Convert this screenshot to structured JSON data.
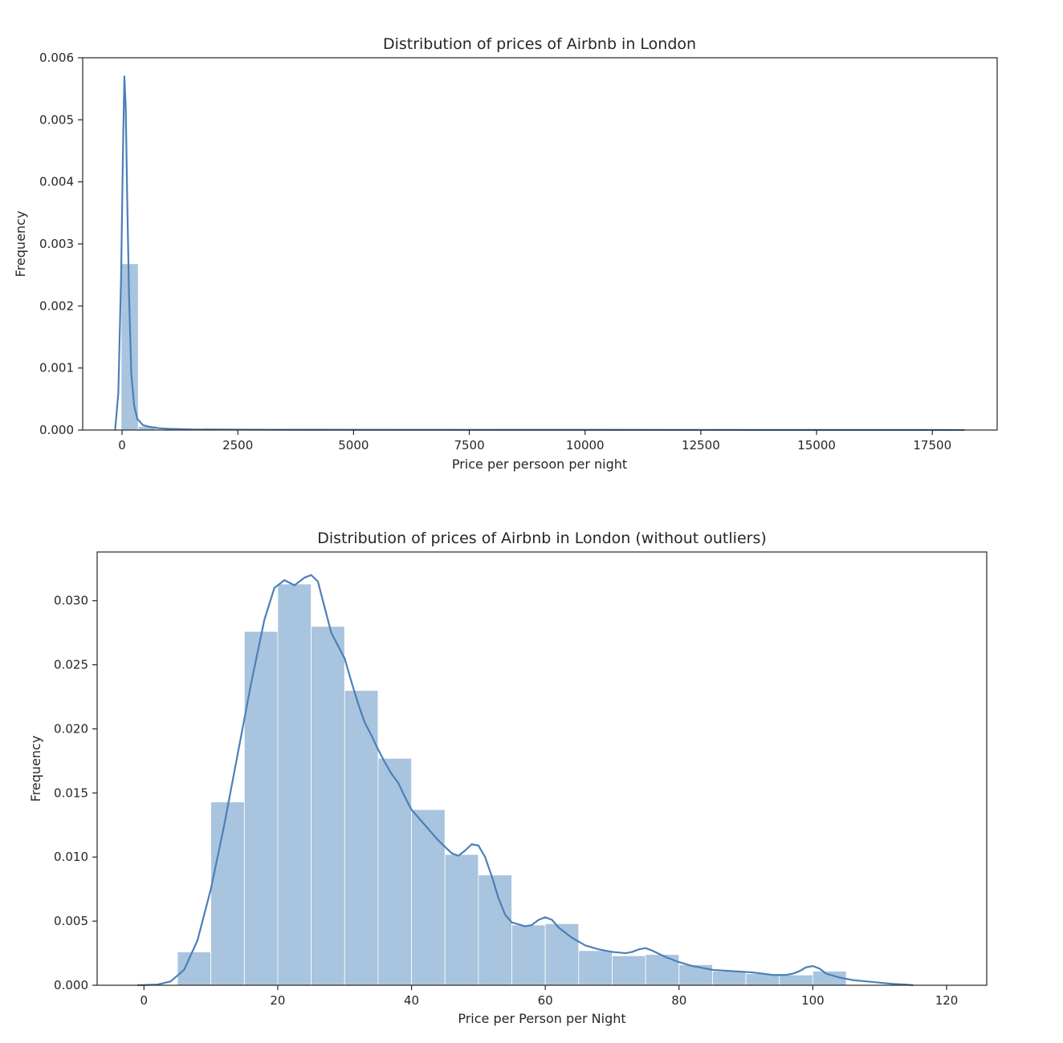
{
  "chart_data": [
    {
      "type": "histogram",
      "title": "Distribution of prices of Airbnb in London",
      "xlabel": "Price per persoon per night",
      "ylabel": "Frequency",
      "xlim": [
        -850,
        18900
      ],
      "ylim": [
        0,
        0.006
      ],
      "xticks": [
        0,
        2500,
        5000,
        7500,
        10000,
        12500,
        15000,
        17500
      ],
      "xtick_labels": [
        "0",
        "2500",
        "5000",
        "7500",
        "10000",
        "12500",
        "15000",
        "17500"
      ],
      "yticks": [
        0,
        0.001,
        0.002,
        0.003,
        0.004,
        0.005,
        0.006
      ],
      "ytick_labels": [
        "0.000",
        "0.001",
        "0.002",
        "0.003",
        "0.004",
        "0.005",
        "0.006"
      ],
      "bins": [
        {
          "x0": -20,
          "x1": 350,
          "y": 0.00268
        },
        {
          "x0": 350,
          "x1": 720,
          "y": 6e-05
        },
        {
          "x0": 720,
          "x1": 1090,
          "y": 1.2e-05
        }
      ],
      "kde": [
        [
          -150,
          0
        ],
        [
          -80,
          0.0006
        ],
        [
          -20,
          0.0025
        ],
        [
          20,
          0.0045
        ],
        [
          50,
          0.0057
        ],
        [
          80,
          0.0052
        ],
        [
          110,
          0.0038
        ],
        [
          150,
          0.0022
        ],
        [
          200,
          0.0009
        ],
        [
          260,
          0.0004
        ],
        [
          330,
          0.00018
        ],
        [
          450,
          8e-05
        ],
        [
          600,
          5e-05
        ],
        [
          800,
          3e-05
        ],
        [
          1000,
          2e-05
        ],
        [
          1500,
          1e-05
        ],
        [
          3000,
          6e-06
        ],
        [
          6000,
          4e-06
        ],
        [
          10000,
          3e-06
        ],
        [
          14000,
          2e-06
        ],
        [
          18200,
          1e-06
        ]
      ]
    },
    {
      "type": "histogram",
      "title": "Distribution of prices of Airbnb in London (without outliers)",
      "xlabel": "Price per Person per Night",
      "ylabel": "Frequency",
      "xlim": [
        -7,
        126
      ],
      "ylim": [
        0,
        0.0338
      ],
      "xticks": [
        0,
        20,
        40,
        60,
        80,
        100,
        120
      ],
      "xtick_labels": [
        "0",
        "20",
        "40",
        "60",
        "80",
        "100",
        "120"
      ],
      "yticks": [
        0,
        0.005,
        0.01,
        0.015,
        0.02,
        0.025,
        0.03
      ],
      "ytick_labels": [
        "0.000",
        "0.005",
        "0.010",
        "0.015",
        "0.020",
        "0.025",
        "0.030"
      ],
      "bins": [
        {
          "x0": 5,
          "x1": 10,
          "y": 0.0026
        },
        {
          "x0": 10,
          "x1": 15,
          "y": 0.0143
        },
        {
          "x0": 15,
          "x1": 20,
          "y": 0.0276
        },
        {
          "x0": 20,
          "x1": 25,
          "y": 0.0313
        },
        {
          "x0": 25,
          "x1": 30,
          "y": 0.028
        },
        {
          "x0": 30,
          "x1": 35,
          "y": 0.023
        },
        {
          "x0": 35,
          "x1": 40,
          "y": 0.0177
        },
        {
          "x0": 40,
          "x1": 45,
          "y": 0.0137
        },
        {
          "x0": 45,
          "x1": 50,
          "y": 0.0102
        },
        {
          "x0": 50,
          "x1": 55,
          "y": 0.0086
        },
        {
          "x0": 55,
          "x1": 60,
          "y": 0.0047
        },
        {
          "x0": 60,
          "x1": 65,
          "y": 0.0048
        },
        {
          "x0": 65,
          "x1": 70,
          "y": 0.0027
        },
        {
          "x0": 70,
          "x1": 75,
          "y": 0.0023
        },
        {
          "x0": 75,
          "x1": 80,
          "y": 0.0024
        },
        {
          "x0": 80,
          "x1": 85,
          "y": 0.0016
        },
        {
          "x0": 85,
          "x1": 90,
          "y": 0.0011
        },
        {
          "x0": 90,
          "x1": 95,
          "y": 0.0009
        },
        {
          "x0": 95,
          "x1": 100,
          "y": 0.0008
        },
        {
          "x0": 100,
          "x1": 105,
          "y": 0.0011
        }
      ],
      "kde": [
        [
          -1,
          0
        ],
        [
          2,
          5e-05
        ],
        [
          4,
          0.0003
        ],
        [
          6,
          0.0012
        ],
        [
          8,
          0.0035
        ],
        [
          10,
          0.0075
        ],
        [
          12,
          0.0125
        ],
        [
          14,
          0.018
        ],
        [
          16,
          0.0235
        ],
        [
          18,
          0.0285
        ],
        [
          19.5,
          0.031
        ],
        [
          21,
          0.0316
        ],
        [
          22.5,
          0.0312
        ],
        [
          24,
          0.0318
        ],
        [
          25,
          0.032
        ],
        [
          26,
          0.0315
        ],
        [
          27,
          0.0295
        ],
        [
          28,
          0.0275
        ],
        [
          29,
          0.0265
        ],
        [
          30,
          0.0255
        ],
        [
          31,
          0.0237
        ],
        [
          32,
          0.022
        ],
        [
          33,
          0.0205
        ],
        [
          34,
          0.0195
        ],
        [
          35,
          0.0184
        ],
        [
          36,
          0.0174
        ],
        [
          37,
          0.0165
        ],
        [
          38,
          0.0158
        ],
        [
          39,
          0.0147
        ],
        [
          40,
          0.0137
        ],
        [
          42,
          0.0125
        ],
        [
          44,
          0.0113
        ],
        [
          45,
          0.0108
        ],
        [
          46,
          0.0103
        ],
        [
          47,
          0.0101
        ],
        [
          48,
          0.0105
        ],
        [
          49,
          0.011
        ],
        [
          50,
          0.0109
        ],
        [
          51,
          0.01
        ],
        [
          52,
          0.0085
        ],
        [
          53,
          0.0068
        ],
        [
          54,
          0.0055
        ],
        [
          55,
          0.0049
        ],
        [
          57,
          0.0046
        ],
        [
          58,
          0.0047
        ],
        [
          59,
          0.0051
        ],
        [
          60,
          0.0053
        ],
        [
          61,
          0.0051
        ],
        [
          62,
          0.0045
        ],
        [
          64,
          0.0037
        ],
        [
          66,
          0.0031
        ],
        [
          68,
          0.0028
        ],
        [
          70,
          0.0026
        ],
        [
          72,
          0.0025
        ],
        [
          73,
          0.0026
        ],
        [
          74,
          0.0028
        ],
        [
          75,
          0.0029
        ],
        [
          76,
          0.0027
        ],
        [
          78,
          0.0022
        ],
        [
          80,
          0.0018
        ],
        [
          82,
          0.0015
        ],
        [
          85,
          0.0012
        ],
        [
          88,
          0.0011
        ],
        [
          91,
          0.001
        ],
        [
          94,
          0.0008
        ],
        [
          96,
          0.0008
        ],
        [
          97,
          0.0009
        ],
        [
          98,
          0.0011
        ],
        [
          99,
          0.0014
        ],
        [
          100,
          0.0015
        ],
        [
          101,
          0.0013
        ],
        [
          102,
          0.0009
        ],
        [
          104,
          0.0006
        ],
        [
          106,
          0.0004
        ],
        [
          108,
          0.0003
        ],
        [
          110,
          0.0002
        ],
        [
          112,
          0.0001
        ],
        [
          114,
          5e-05
        ],
        [
          115,
          0
        ]
      ]
    }
  ],
  "colors": {
    "bar_fill": "#a8c4de",
    "kde_line": "#4c7fb8",
    "axes": "#262626"
  }
}
